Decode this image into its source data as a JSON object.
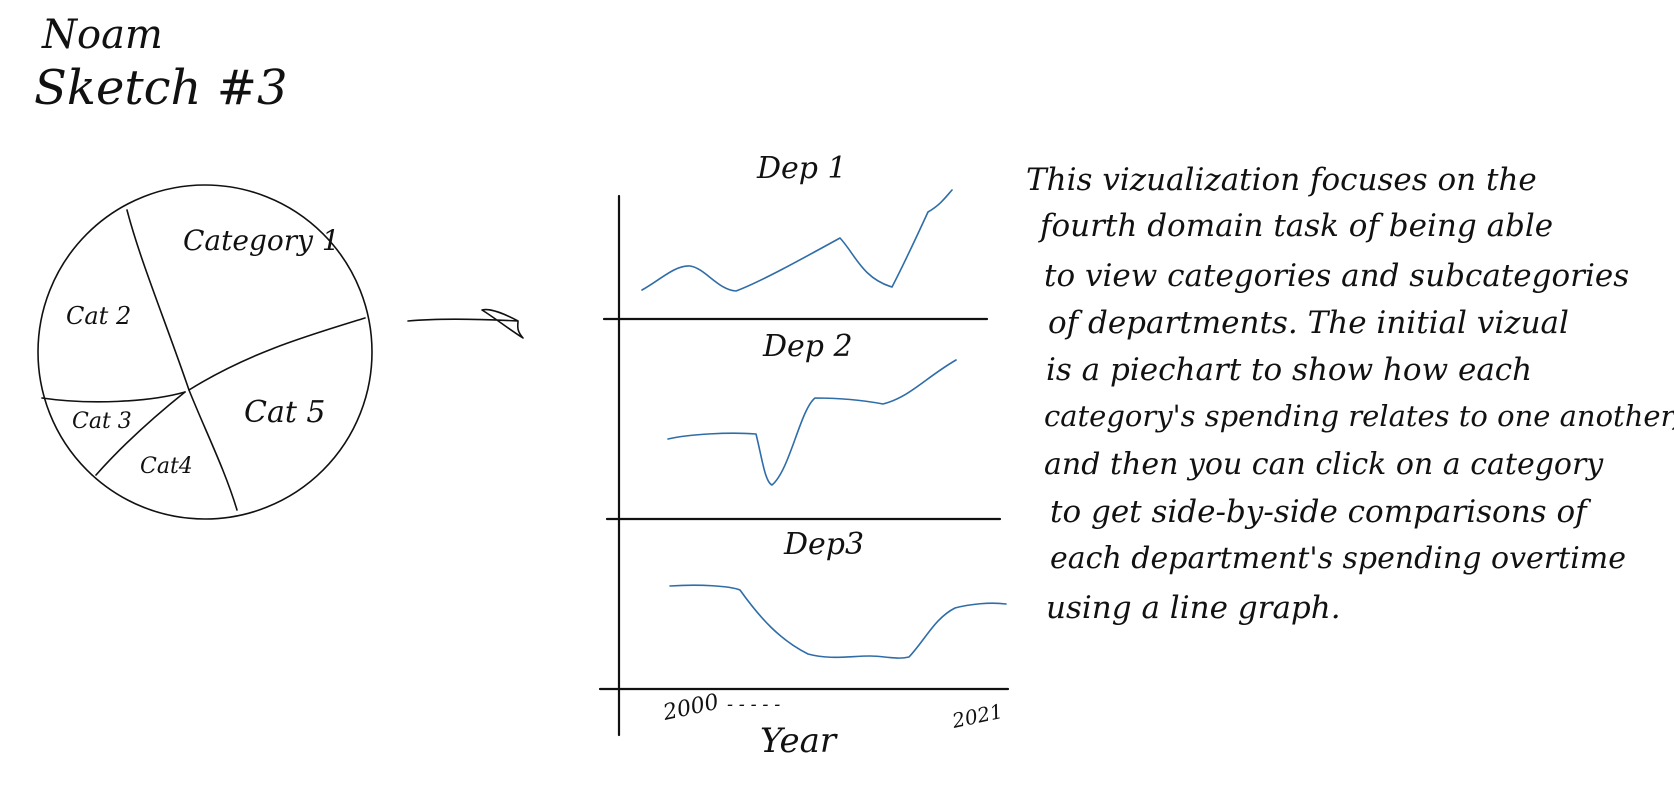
{
  "author": "Noam",
  "sketch_title": "Sketch #3",
  "pie": {
    "categories": [
      "Category 1",
      "Cat 2",
      "Cat 3",
      "Cat4",
      "Cat 5"
    ]
  },
  "panels": [
    {
      "title": "Dep 1"
    },
    {
      "title": "Dep 2"
    },
    {
      "title": "Dep3"
    }
  ],
  "x_axis": {
    "start_label": "2000",
    "ellipsis": "- - - - -",
    "end_label": "2021",
    "label": "Year"
  },
  "description": [
    "This vizualization focuses on the",
    "fourth domain task of being able",
    "to view categories and subcategories",
    "of departments. The initial vizual",
    "is a piechart to show how each",
    "category's spending relates to one another,",
    "and then you can click on a category",
    "to get side-by-side comparisons of",
    "each department's spending overtime",
    "using a line graph."
  ],
  "colors": {
    "ink": "#111111",
    "line": "#2f6da8"
  }
}
